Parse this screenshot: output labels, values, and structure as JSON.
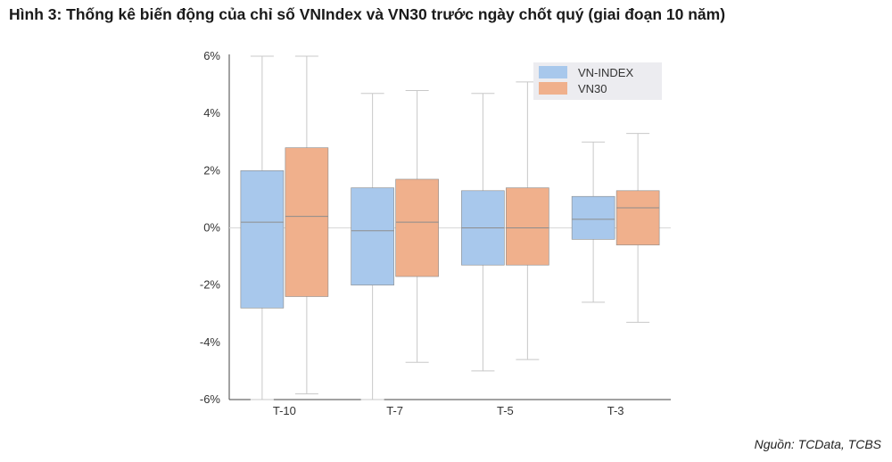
{
  "figure": {
    "title": "Hình 3: Thống kê biến động của chỉ số VNIndex và VN30 trước ngày chốt quý (giai đoạn 10 năm)",
    "source": "Nguồn: TCData, TCBS"
  },
  "chart_data": {
    "type": "box",
    "categories": [
      "T-10",
      "T-7",
      "T-5",
      "T-3"
    ],
    "y_ticks": [
      "6%",
      "4%",
      "2%",
      "0%",
      "-2%",
      "-4%",
      "-6%"
    ],
    "ylim": [
      -6,
      6
    ],
    "yunit": "%",
    "grid": false,
    "zero_line": true,
    "legend_position": "top-right",
    "series": [
      {
        "name": "VN-INDEX",
        "color": "#a8c8ec",
        "boxes": [
          {
            "whisker_low": -6.0,
            "q1": -2.8,
            "median": 0.2,
            "q3": 2.0,
            "whisker_high": 6.0
          },
          {
            "whisker_low": -6.0,
            "q1": -2.0,
            "median": -0.1,
            "q3": 1.4,
            "whisker_high": 4.7
          },
          {
            "whisker_low": -5.0,
            "q1": -1.3,
            "median": 0.0,
            "q3": 1.3,
            "whisker_high": 4.7
          },
          {
            "whisker_low": -2.6,
            "q1": -0.4,
            "median": 0.3,
            "q3": 1.1,
            "whisker_high": 3.0
          }
        ]
      },
      {
        "name": "VN30",
        "color": "#f0b08c",
        "boxes": [
          {
            "whisker_low": -5.8,
            "q1": -2.4,
            "median": 0.4,
            "q3": 2.8,
            "whisker_high": 6.0
          },
          {
            "whisker_low": -4.7,
            "q1": -1.7,
            "median": 0.2,
            "q3": 1.7,
            "whisker_high": 4.8
          },
          {
            "whisker_low": -4.6,
            "q1": -1.3,
            "median": 0.0,
            "q3": 1.4,
            "whisker_high": 5.1
          },
          {
            "whisker_low": -3.3,
            "q1": -0.6,
            "median": 0.7,
            "q3": 1.3,
            "whisker_high": 3.3
          }
        ]
      }
    ]
  }
}
